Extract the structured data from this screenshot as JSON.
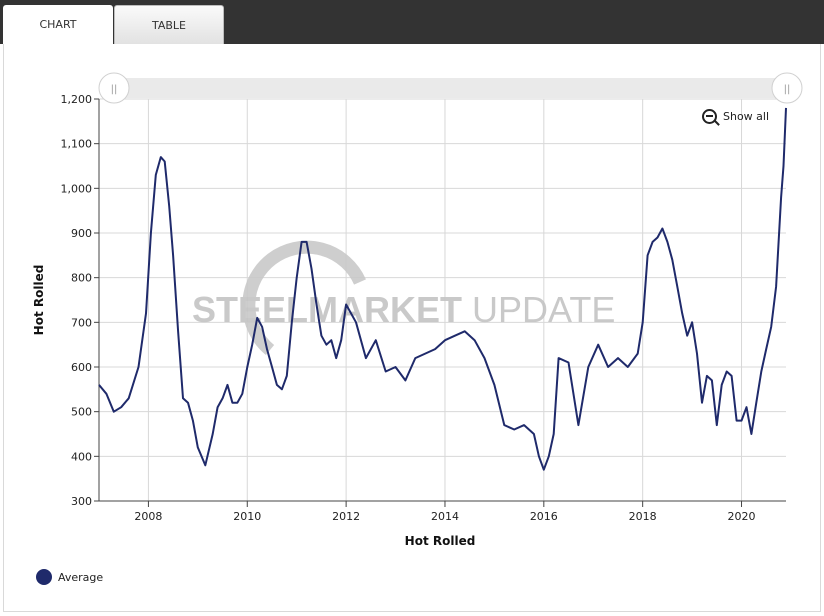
{
  "tabs": [
    {
      "label": "CHART",
      "active": true
    },
    {
      "label": "TABLE",
      "active": false
    }
  ],
  "controls": {
    "show_all_label": "Show all",
    "slider_handle_glyph": "||"
  },
  "watermark": {
    "part1": "STEEL",
    "part2": "MARKET",
    "part3": " UPDATE"
  },
  "colors": {
    "line": "#1f2a6b",
    "grid": "#d8d8d8",
    "watermark": "#cfcfcf"
  },
  "chart_data": {
    "type": "line",
    "title": "",
    "xlabel": "Hot Rolled",
    "ylabel": "Hot Rolled",
    "ylim": [
      300,
      1200
    ],
    "xlim": [
      2007.0,
      2020.9
    ],
    "yticks": [
      300,
      400,
      500,
      600,
      700,
      800,
      900,
      1000,
      1100,
      1200
    ],
    "ytick_labels": [
      "300",
      "400",
      "500",
      "600",
      "700",
      "800",
      "900",
      "1,000",
      "1,100",
      "1,200"
    ],
    "xticks": [
      2008,
      2010,
      2012,
      2014,
      2016,
      2018,
      2020
    ],
    "xtick_labels": [
      "2008",
      "2010",
      "2012",
      "2014",
      "2016",
      "2018",
      "2020"
    ],
    "grid": true,
    "legend_position": "bottom-left",
    "series": [
      {
        "name": "Average",
        "x": [
          2007.0,
          2007.15,
          2007.3,
          2007.45,
          2007.6,
          2007.8,
          2007.95,
          2008.05,
          2008.15,
          2008.25,
          2008.33,
          2008.42,
          2008.5,
          2008.6,
          2008.7,
          2008.8,
          2008.9,
          2009.0,
          2009.15,
          2009.3,
          2009.4,
          2009.5,
          2009.6,
          2009.7,
          2009.8,
          2009.9,
          2010.0,
          2010.1,
          2010.2,
          2010.3,
          2010.4,
          2010.5,
          2010.6,
          2010.7,
          2010.8,
          2010.9,
          2011.0,
          2011.1,
          2011.2,
          2011.3,
          2011.4,
          2011.5,
          2011.6,
          2011.7,
          2011.8,
          2011.9,
          2012.0,
          2012.2,
          2012.4,
          2012.6,
          2012.8,
          2013.0,
          2013.2,
          2013.4,
          2013.6,
          2013.8,
          2014.0,
          2014.2,
          2014.4,
          2014.6,
          2014.8,
          2015.0,
          2015.2,
          2015.4,
          2015.6,
          2015.8,
          2015.9,
          2016.0,
          2016.1,
          2016.2,
          2016.3,
          2016.5,
          2016.7,
          2016.9,
          2017.1,
          2017.3,
          2017.5,
          2017.7,
          2017.9,
          2018.0,
          2018.1,
          2018.2,
          2018.3,
          2018.4,
          2018.5,
          2018.6,
          2018.7,
          2018.8,
          2018.9,
          2019.0,
          2019.1,
          2019.2,
          2019.3,
          2019.4,
          2019.5,
          2019.6,
          2019.7,
          2019.8,
          2019.9,
          2020.0,
          2020.1,
          2020.2,
          2020.3,
          2020.4,
          2020.5,
          2020.6,
          2020.7,
          2020.8,
          2020.85,
          2020.9
        ],
        "values": [
          560,
          540,
          500,
          510,
          530,
          600,
          720,
          900,
          1030,
          1070,
          1060,
          960,
          850,
          680,
          530,
          520,
          480,
          420,
          380,
          450,
          510,
          530,
          560,
          520,
          520,
          540,
          600,
          650,
          710,
          690,
          640,
          600,
          560,
          550,
          580,
          700,
          800,
          880,
          880,
          820,
          740,
          670,
          650,
          660,
          620,
          660,
          740,
          700,
          620,
          660,
          590,
          600,
          570,
          620,
          630,
          640,
          660,
          670,
          680,
          660,
          620,
          560,
          470,
          460,
          470,
          450,
          400,
          370,
          400,
          450,
          620,
          610,
          470,
          600,
          650,
          600,
          620,
          600,
          630,
          700,
          850,
          880,
          890,
          910,
          880,
          840,
          780,
          720,
          670,
          700,
          630,
          520,
          580,
          570,
          470,
          560,
          590,
          580,
          480,
          480,
          510,
          450,
          520,
          590,
          640,
          690,
          780,
          980,
          1050,
          1180
        ]
      }
    ]
  }
}
